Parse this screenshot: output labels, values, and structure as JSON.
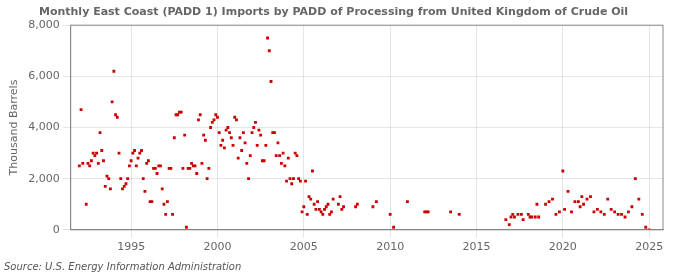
{
  "chart_data": {
    "type": "scatter",
    "title": "Monthly East Coast (PADD 1) Imports by PADD of Processing from United Kingdom of Crude Oil",
    "ylabel": "Thousand Barrels",
    "annotations": [
      "Source: U.S. Energy Information Administration"
    ],
    "color": "#cc0000",
    "marker": "square",
    "grid": true,
    "xlim": [
      1991.5,
      2025.8
    ],
    "ylim": [
      0,
      8000
    ],
    "xticks": [
      1995,
      2000,
      2005,
      2010,
      2015,
      2020,
      2025
    ],
    "yticks": [
      0,
      {
        "value": 2000,
        "label": "2,000"
      },
      {
        "value": 4000,
        "label": "4,000"
      },
      {
        "value": 6000,
        "label": "6,000"
      },
      {
        "value": 8000,
        "label": "8,000"
      }
    ],
    "x": [
      1992.0,
      1992.1,
      1992.2,
      1992.4,
      1992.5,
      1992.6,
      1992.7,
      1992.8,
      1992.9,
      1993.0,
      1993.1,
      1993.2,
      1993.3,
      1993.4,
      1993.5,
      1993.6,
      1993.7,
      1993.8,
      1993.9,
      1994.0,
      1994.1,
      1994.2,
      1994.3,
      1994.4,
      1994.5,
      1994.6,
      1994.7,
      1994.8,
      1994.9,
      1995.0,
      1995.1,
      1995.2,
      1995.3,
      1995.4,
      1995.5,
      1995.6,
      1995.7,
      1995.8,
      1995.9,
      1996.0,
      1996.1,
      1996.2,
      1996.3,
      1996.4,
      1996.5,
      1996.6,
      1996.7,
      1996.8,
      1996.9,
      1997.0,
      1997.1,
      1997.2,
      1997.3,
      1997.4,
      1997.5,
      1997.6,
      1997.7,
      1997.8,
      1997.9,
      1998.0,
      1998.1,
      1998.2,
      1998.3,
      1998.4,
      1998.5,
      1998.6,
      1998.7,
      1998.8,
      1998.9,
      1999.0,
      1999.1,
      1999.2,
      1999.3,
      1999.4,
      1999.5,
      1999.6,
      1999.7,
      1999.8,
      1999.9,
      2000.0,
      2000.1,
      2000.2,
      2000.3,
      2000.4,
      2000.5,
      2000.6,
      2000.7,
      2000.8,
      2000.9,
      2001.0,
      2001.1,
      2001.2,
      2001.3,
      2001.4,
      2001.5,
      2001.6,
      2001.7,
      2001.8,
      2001.9,
      2002.0,
      2002.1,
      2002.2,
      2002.3,
      2002.4,
      2002.5,
      2002.6,
      2002.7,
      2002.8,
      2002.9,
      2003.0,
      2003.1,
      2003.2,
      2003.3,
      2003.4,
      2003.5,
      2003.6,
      2003.7,
      2003.8,
      2003.9,
      2004.0,
      2004.1,
      2004.2,
      2004.3,
      2004.4,
      2004.5,
      2004.6,
      2004.7,
      2004.8,
      2004.9,
      2005.0,
      2005.1,
      2005.2,
      2005.3,
      2005.4,
      2005.5,
      2005.6,
      2005.7,
      2005.8,
      2005.9,
      2006.0,
      2006.1,
      2006.2,
      2006.3,
      2006.4,
      2006.5,
      2006.6,
      2006.7,
      2007.0,
      2007.1,
      2007.2,
      2007.3,
      2008.0,
      2008.1,
      2009.0,
      2009.2,
      2010.0,
      2010.2,
      2011.0,
      2012.0,
      2012.1,
      2012.2,
      2013.5,
      2014.0,
      2016.7,
      2016.9,
      2017.0,
      2017.1,
      2017.2,
      2017.4,
      2017.6,
      2017.7,
      2018.0,
      2018.1,
      2018.2,
      2018.4,
      2018.5,
      2018.6,
      2019.0,
      2019.2,
      2019.4,
      2019.6,
      2019.8,
      2020.0,
      2020.1,
      2020.3,
      2020.5,
      2020.7,
      2020.9,
      2021.0,
      2021.1,
      2021.2,
      2021.4,
      2021.6,
      2021.8,
      2022.0,
      2022.2,
      2022.4,
      2022.6,
      2022.8,
      2023.0,
      2023.2,
      2023.4,
      2023.6,
      2023.8,
      2024.0,
      2024.2,
      2024.4,
      2024.6,
      2024.8,
      2025.0
    ],
    "values": [
      2500,
      4700,
      2600,
      1000,
      2600,
      2500,
      2700,
      3000,
      2900,
      3000,
      2600,
      3800,
      3100,
      2700,
      1700,
      2100,
      2000,
      1600,
      5000,
      6200,
      4500,
      4400,
      3000,
      2000,
      1600,
      1700,
      1800,
      2000,
      2500,
      2700,
      3000,
      3100,
      2500,
      2800,
      3000,
      3100,
      2000,
      1500,
      2600,
      2700,
      1100,
      1100,
      2400,
      2400,
      2200,
      2500,
      2500,
      1600,
      1000,
      600,
      1100,
      2400,
      2400,
      600,
      3600,
      4500,
      4500,
      4600,
      4600,
      2400,
      3700,
      100,
      2400,
      2400,
      2600,
      2500,
      2500,
      2200,
      4300,
      4500,
      2600,
      3700,
      3500,
      2000,
      2400,
      4000,
      4200,
      4300,
      4500,
      4400,
      3800,
      3300,
      3500,
      3200,
      3900,
      4000,
      3800,
      3600,
      3300,
      4400,
      4300,
      2800,
      3600,
      3100,
      3800,
      3400,
      2600,
      2000,
      2900,
      3800,
      4000,
      4200,
      3300,
      3900,
      3700,
      2700,
      2700,
      3300,
      7500,
      7000,
      5800,
      3800,
      3800,
      2900,
      3400,
      2900,
      2600,
      3000,
      2500,
      1900,
      2800,
      2000,
      1800,
      2000,
      3000,
      2900,
      2000,
      1900,
      700,
      900,
      1900,
      600,
      1300,
      1200,
      2300,
      1000,
      800,
      1100,
      800,
      700,
      600,
      800,
      900,
      1000,
      600,
      700,
      1200,
      1000,
      1300,
      800,
      900,
      900,
      1000,
      900,
      1100,
      600,
      100,
      1100,
      700,
      700,
      700,
      700,
      600,
      400,
      200,
      500,
      600,
      500,
      600,
      600,
      400,
      600,
      500,
      500,
      500,
      1000,
      500,
      1000,
      1100,
      1200,
      600,
      700,
      2300,
      800,
      1500,
      700,
      1100,
      1100,
      900,
      1300,
      1000,
      1200,
      1300,
      700,
      800,
      700,
      600,
      1200,
      800,
      700,
      600,
      600,
      500,
      700,
      900,
      2000,
      1200,
      600,
      100,
      0
    ]
  }
}
